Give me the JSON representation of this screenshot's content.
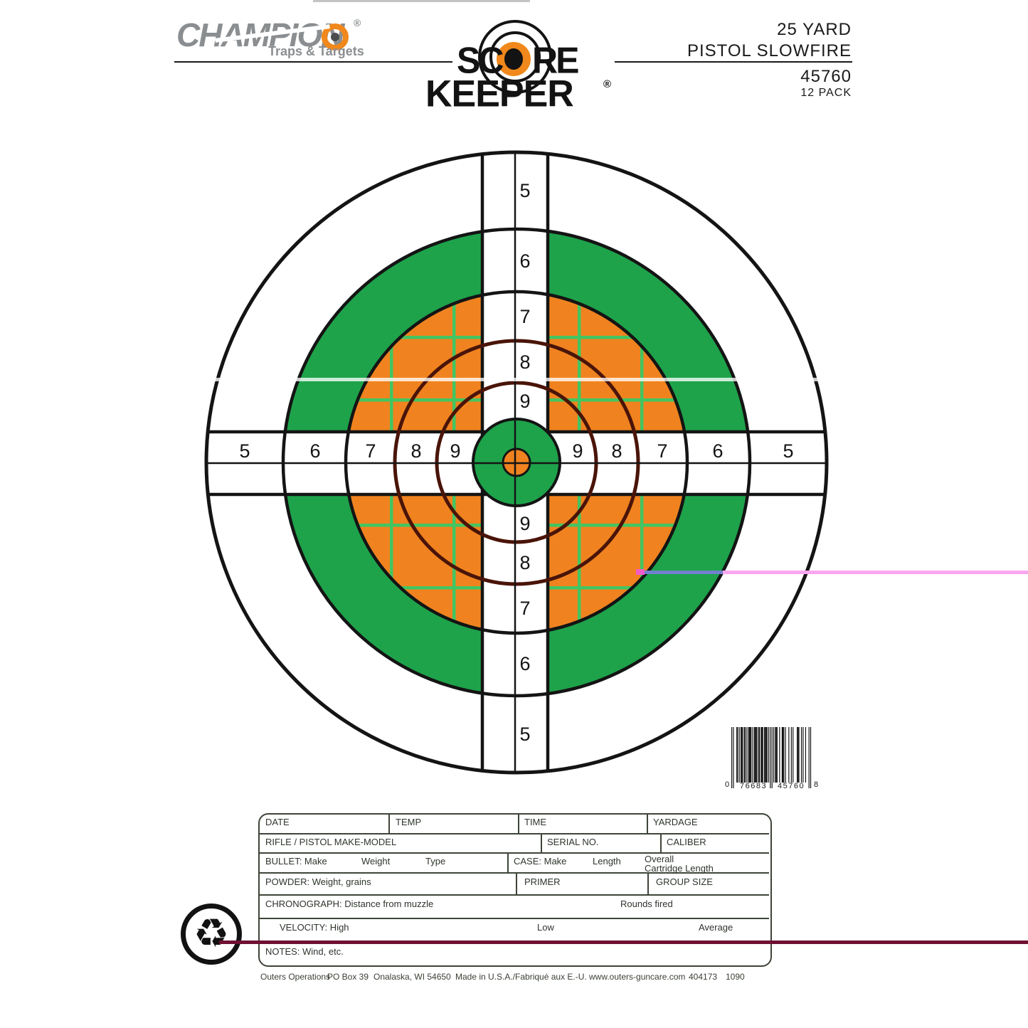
{
  "header": {
    "brand": {
      "name": "CHAMPION",
      "registered": "®",
      "tagline": "Traps & Targets"
    },
    "logo": {
      "word1_left": "SC",
      "word1_right": "RE",
      "word2": "KEEPER",
      "registered": "®"
    },
    "product": {
      "distance": "25 YARD",
      "discipline": "PISTOL SLOWFIRE",
      "sku": "45760",
      "pack": "12 PACK"
    }
  },
  "target": {
    "band_values": [
      "5",
      "6",
      "7",
      "8",
      "9"
    ]
  },
  "barcode": {
    "system_digit": "0",
    "left_group": "76683",
    "right_group": "45760",
    "check_digit": "8",
    "full_text": "0 76683 45760 8"
  },
  "log_table": {
    "date": "DATE",
    "temp": "TEMP",
    "time": "TIME",
    "yardage": "YARDAGE",
    "make_model": "RIFLE / PISTOL MAKE-MODEL",
    "serial": "SERIAL NO.",
    "caliber": "CALIBER",
    "bullet": "BULLET: Make",
    "bullet_weight": "Weight",
    "bullet_type": "Type",
    "case": "CASE: Make",
    "case_length": "Length",
    "overall_line1": "Overall",
    "overall_line2": "Cartridge Length",
    "powder": "POWDER: Weight, grains",
    "primer": "PRIMER",
    "group_size": "GROUP SIZE",
    "chronograph": "CHRONOGRAPH: Distance from muzzle",
    "rounds_fired": "Rounds fired",
    "velocity": "VELOCITY: High",
    "velocity_low": "Low",
    "velocity_average": "Average",
    "notes": "NOTES: Wind, etc."
  },
  "footer": {
    "segments": [
      "Outers Operations",
      "PO Box 39",
      "Onalaska, WI 54650",
      "Made in U.S.A./Fabriqué aux E.-U.",
      "www.outers-guncare.com",
      "404173",
      "1090"
    ]
  },
  "colors": {
    "green": "#1EA34B",
    "grid_green": "#42C561",
    "orange": "#F0831F",
    "ring_maroon": "#4A1408",
    "ink": "#141414",
    "table_line": "#3E4539",
    "brand_gray": "#8B8E90",
    "logo_orange": "#F0881C",
    "artifact_pink": "#FBA6F0",
    "artifact_blue": "#7181CF",
    "artifact_magenta": "#F25AC8",
    "artifact_maroon": "#6F1133"
  }
}
